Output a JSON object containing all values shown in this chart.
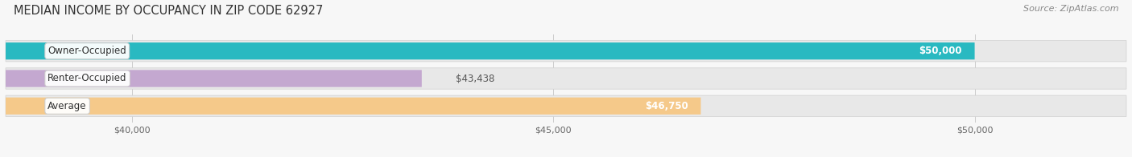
{
  "title": "MEDIAN INCOME BY OCCUPANCY IN ZIP CODE 62927",
  "source_text": "Source: ZipAtlas.com",
  "categories": [
    "Owner-Occupied",
    "Renter-Occupied",
    "Average"
  ],
  "values": [
    50000,
    43438,
    46750
  ],
  "bar_colors": [
    "#29b9c1",
    "#c4a8d0",
    "#f5c98a"
  ],
  "label_texts": [
    "$50,000",
    "$43,438",
    "$46,750"
  ],
  "label_inside": [
    true,
    false,
    true
  ],
  "xlim_min": 38500,
  "xlim_max": 51800,
  "xticks": [
    40000,
    45000,
    50000
  ],
  "xtick_labels": [
    "$40,000",
    "$45,000",
    "$50,000"
  ],
  "bar_height": 0.62,
  "bg_color": "#f7f7f7",
  "bar_bg_color": "#e8e8e8",
  "title_fontsize": 10.5,
  "source_fontsize": 8,
  "label_fontsize": 8.5,
  "tick_fontsize": 8,
  "category_fontsize": 8.5
}
